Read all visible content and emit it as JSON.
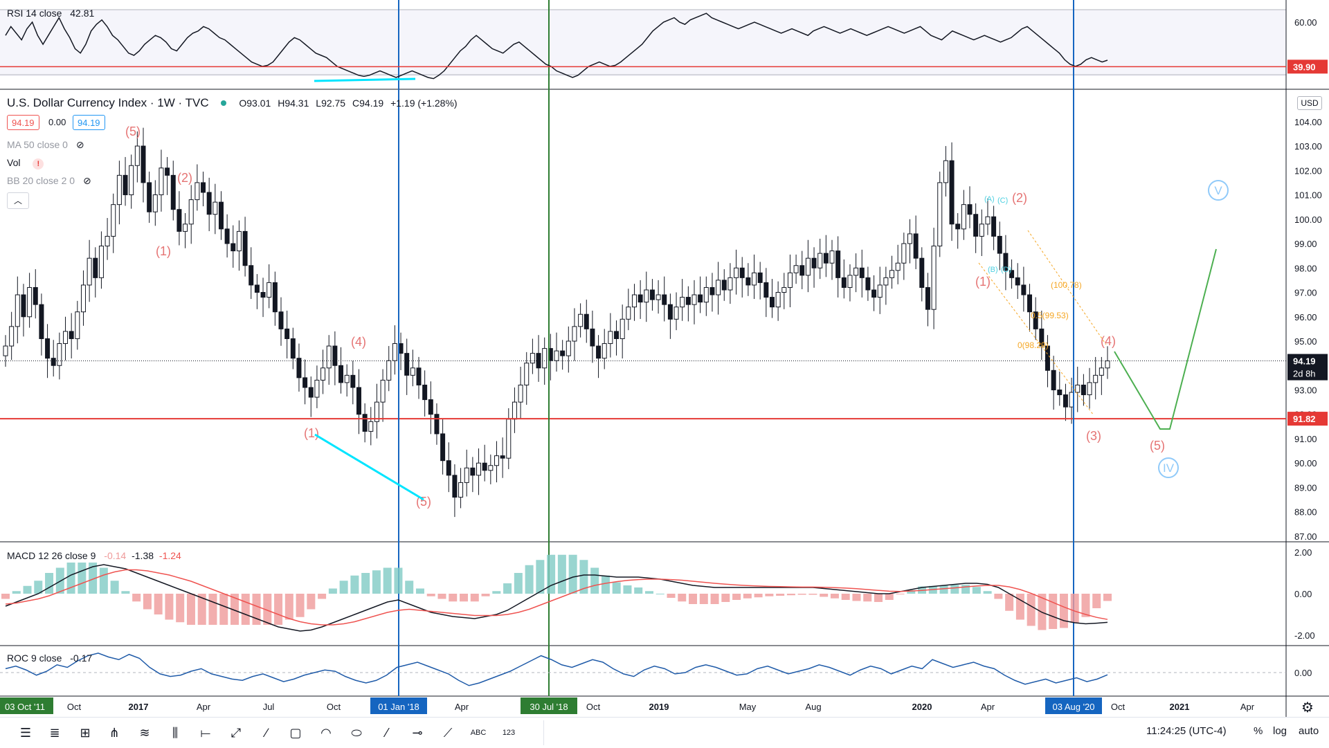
{
  "app": {
    "symbol_title": "U.S. Dollar Currency Index · 1W · TVC",
    "ohlc": {
      "open_label": "O",
      "open": "93.01",
      "high_label": "H",
      "high": "94.31",
      "low_label": "L",
      "low": "92.75",
      "close_label": "C",
      "close": "94.19",
      "change": "+1.19 (+1.28%)"
    },
    "bid": "94.19",
    "spread": "0.00",
    "ask": "94.19",
    "indicators": [
      {
        "label": "MA 50 close 0",
        "muted": true
      },
      {
        "label": "Vol",
        "muted": false
      },
      {
        "label": "BB 20 close 2 0",
        "muted": true
      }
    ],
    "currency": "USD",
    "time_display": "11:24:25 (UTC-4)",
    "scale_buttons": [
      "%",
      "log",
      "auto"
    ]
  },
  "chart_data": [
    {
      "type": "line",
      "title": "RSI 14 close",
      "last_value": "42.81",
      "y_ticks": [
        "60.00"
      ],
      "level_line": {
        "value": 39.9,
        "label": "39.90",
        "color": "#e53935"
      },
      "series": [
        {
          "name": "RSI 14 close",
          "color": "#131722",
          "values": [
            54,
            58,
            55,
            52,
            57,
            60,
            54,
            50,
            54,
            58,
            62,
            57,
            53,
            48,
            46,
            50,
            56,
            59,
            61,
            58,
            54,
            52,
            49,
            46,
            45,
            47,
            50,
            52,
            54,
            53,
            51,
            48,
            47,
            50,
            53,
            55,
            56,
            58,
            57,
            55,
            53,
            52,
            50,
            48,
            46,
            44,
            42,
            41,
            40,
            40.5,
            42,
            45,
            48,
            51,
            53,
            52,
            50,
            48,
            46,
            45,
            44,
            42,
            40,
            39,
            38,
            37,
            36,
            35.5,
            36,
            37,
            38,
            37,
            36,
            35,
            36,
            37,
            38,
            37,
            36,
            35,
            34.5,
            36,
            38,
            41,
            44,
            47,
            49,
            52,
            54,
            52,
            50,
            48,
            47,
            46,
            48,
            50,
            51,
            49,
            47,
            45,
            43,
            41,
            40,
            38,
            37,
            36,
            35,
            36,
            38,
            40,
            41,
            42,
            41,
            40,
            40.5,
            42,
            44,
            46,
            48,
            50,
            53,
            56,
            58,
            60,
            61,
            62,
            60,
            59,
            61,
            62,
            63,
            64,
            62,
            61,
            60,
            59,
            58,
            57,
            58,
            59,
            60,
            59,
            58,
            57,
            56,
            55,
            56,
            57,
            56,
            55,
            54,
            56,
            57,
            58,
            57,
            56,
            55,
            56,
            57,
            56,
            55,
            54,
            55,
            56,
            57,
            58,
            57,
            56,
            55,
            56,
            57,
            58,
            56,
            54,
            53,
            52,
            54,
            56,
            55,
            54,
            53,
            52,
            53,
            54,
            53,
            52,
            51,
            52,
            53,
            55,
            57,
            58,
            56,
            54,
            52,
            50,
            48,
            46,
            43,
            41,
            40,
            41,
            43,
            44,
            43,
            42,
            42.81
          ]
        }
      ]
    },
    {
      "type": "candlestick",
      "title": "U.S. Dollar Currency Index",
      "y_ticks": [
        "104.00",
        "103.00",
        "102.00",
        "101.00",
        "100.00",
        "99.00",
        "98.00",
        "97.00",
        "96.00",
        "95.00",
        "93.00",
        "92.00",
        "91.00",
        "90.00",
        "89.00",
        "88.00",
        "87.00"
      ],
      "y_range": [
        86.8,
        105.3
      ],
      "last_price": {
        "value": 94.19,
        "label": "94.19",
        "countdown": "2d 8h"
      },
      "support_line": {
        "value": 91.82,
        "label": "91.82",
        "color": "#e53935"
      },
      "close_series": [
        94.8,
        95.6,
        96.9,
        96.0,
        97.2,
        96.5,
        95.1,
        94.3,
        94.0,
        94.9,
        95.4,
        95.1,
        96.2,
        97.3,
        98.4,
        97.6,
        98.9,
        99.3,
        100.6,
        101.8,
        101.0,
        102.2,
        103.0,
        101.5,
        100.3,
        101.0,
        102.1,
        101.8,
        100.4,
        99.5,
        99.8,
        100.8,
        101.5,
        101.1,
        100.2,
        100.7,
        99.6,
        99.0,
        98.7,
        99.5,
        98.1,
        97.3,
        97.0,
        96.8,
        97.4,
        96.2,
        95.5,
        95.1,
        94.3,
        93.5,
        93.1,
        92.7,
        93.4,
        93.9,
        94.8,
        94.0,
        93.3,
        93.6,
        93.1,
        92.0,
        91.3,
        91.7,
        92.5,
        93.4,
        94.2,
        94.9,
        94.5,
        93.6,
        93.9,
        93.2,
        92.6,
        92.0,
        91.2,
        90.1,
        89.5,
        88.6,
        89.2,
        89.8,
        89.5,
        90.0,
        89.7,
        89.9,
        90.3,
        90.2,
        91.8,
        92.5,
        93.2,
        94.1,
        94.5,
        93.9,
        94.7,
        94.2,
        94.6,
        94.4,
        95.0,
        95.6,
        96.1,
        95.5,
        94.8,
        94.3,
        94.9,
        95.4,
        95.1,
        95.9,
        96.4,
        96.9,
        96.6,
        97.1,
        96.7,
        96.9,
        96.5,
        95.9,
        96.4,
        96.8,
        96.5,
        96.9,
        96.6,
        97.2,
        96.9,
        97.5,
        97.1,
        97.6,
        98.0,
        97.6,
        97.3,
        97.8,
        97.4,
        96.8,
        96.4,
        97.0,
        97.2,
        97.8,
        98.1,
        97.7,
        98.4,
        98.0,
        98.6,
        98.2,
        98.7,
        97.6,
        97.2,
        97.7,
        98.0,
        97.6,
        97.1,
        96.8,
        97.3,
        97.6,
        97.9,
        98.2,
        99.0,
        99.4,
        98.4,
        97.2,
        96.3,
        98.9,
        101.5,
        102.4,
        99.8,
        99.6,
        100.6,
        100.2,
        99.3,
        99.8,
        100.1,
        99.3,
        98.6,
        97.9,
        97.6,
        97.3,
        96.9,
        96.2,
        95.5,
        94.8,
        93.8,
        93.0,
        92.8,
        92.3,
        92.9,
        93.2,
        92.8,
        93.3,
        93.6,
        93.9,
        94.19
      ],
      "x_ticks": [
        "03 Oct '11",
        "Oct",
        "2017",
        "Apr",
        "Jul",
        "Oct",
        "01 Jan '18",
        "Apr",
        "30 Jul '18",
        "Oct",
        "2019",
        "May",
        "Aug",
        "2020",
        "Apr",
        "03 Aug '20",
        "Oct",
        "2021",
        "Apr"
      ],
      "x_ticks_highlighted": [
        "03 Oct '11",
        "01 Jan '18",
        "30 Jul '18",
        "03 Aug '20"
      ],
      "vertical_markers": [
        {
          "label": "01 Jan '18",
          "color": "#1565c0"
        },
        {
          "label": "30 Jul '18",
          "color": "#2e7d32"
        },
        {
          "label": "03 Aug '20",
          "color": "#1565c0"
        }
      ],
      "annotations": {
        "wave_labels": [
          "(5)",
          "(1)",
          "(2)",
          "(1)",
          "(4)",
          "(5)",
          "(1)",
          "(2)",
          "(3)",
          "(4)",
          "(5)"
        ],
        "roman_labels": [
          "V",
          "IV"
        ],
        "fib_levels": [
          "(100.78)",
          "0.5(99.53)",
          "0(98.29)"
        ],
        "sub_wave_labels": [
          "(A)",
          "(C)",
          "(B)",
          "(D)"
        ]
      }
    },
    {
      "type": "line",
      "title": "MACD 12 26 close 9",
      "values_text": [
        "-0.14",
        "-1.38",
        "-1.24"
      ],
      "y_ticks": [
        "2.00",
        "0.00",
        "-2.00"
      ],
      "series": [
        {
          "name": "MACD",
          "color": "#131722",
          "values": [
            -0.6,
            -0.4,
            -0.2,
            0,
            0.3,
            0.6,
            0.9,
            1.1,
            1.3,
            1.4,
            1.3,
            1.2,
            1.0,
            0.8,
            0.6,
            0.4,
            0.2,
            0,
            -0.2,
            -0.4,
            -0.6,
            -0.8,
            -1.0,
            -1.2,
            -1.4,
            -1.6,
            -1.7,
            -1.8,
            -1.75,
            -1.6,
            -1.4,
            -1.2,
            -1.0,
            -0.8,
            -0.6,
            -0.4,
            -0.3,
            -0.5,
            -0.7,
            -0.9,
            -1.0,
            -1.1,
            -1.15,
            -1.2,
            -1.1,
            -1.0,
            -0.8,
            -0.5,
            -0.2,
            0.1,
            0.4,
            0.6,
            0.8,
            0.9,
            0.9,
            0.85,
            0.8,
            0.8,
            0.8,
            0.75,
            0.7,
            0.6,
            0.5,
            0.4,
            0.35,
            0.3,
            0.3,
            0.3,
            0.3,
            0.3,
            0.3,
            0.3,
            0.3,
            0.3,
            0.3,
            0.25,
            0.2,
            0.15,
            0.1,
            0.05,
            0,
            0,
            0.1,
            0.2,
            0.3,
            0.35,
            0.4,
            0.45,
            0.5,
            0.5,
            0.45,
            0.3,
            0,
            -0.3,
            -0.6,
            -0.9,
            -1.1,
            -1.3,
            -1.4,
            -1.45,
            -1.42,
            -1.38
          ]
        },
        {
          "name": "Signal",
          "color": "#ef5350",
          "values": [
            -0.5,
            -0.45,
            -0.35,
            -0.25,
            -0.1,
            0.1,
            0.3,
            0.5,
            0.7,
            0.9,
            1.05,
            1.15,
            1.15,
            1.1,
            1.0,
            0.9,
            0.75,
            0.6,
            0.4,
            0.2,
            0,
            -0.2,
            -0.4,
            -0.6,
            -0.8,
            -1.0,
            -1.2,
            -1.35,
            -1.45,
            -1.5,
            -1.5,
            -1.45,
            -1.35,
            -1.2,
            -1.05,
            -0.9,
            -0.8,
            -0.75,
            -0.8,
            -0.85,
            -0.9,
            -0.95,
            -1.0,
            -1.05,
            -1.05,
            -1.05,
            -1.0,
            -0.9,
            -0.75,
            -0.55,
            -0.35,
            -0.15,
            0.05,
            0.25,
            0.4,
            0.5,
            0.58,
            0.64,
            0.68,
            0.7,
            0.7,
            0.68,
            0.65,
            0.6,
            0.55,
            0.5,
            0.46,
            0.42,
            0.39,
            0.37,
            0.35,
            0.34,
            0.33,
            0.32,
            0.32,
            0.31,
            0.29,
            0.27,
            0.24,
            0.2,
            0.16,
            0.12,
            0.11,
            0.13,
            0.16,
            0.2,
            0.24,
            0.28,
            0.33,
            0.37,
            0.4,
            0.4,
            0.33,
            0.2,
            0.02,
            -0.2,
            -0.42,
            -0.64,
            -0.84,
            -1.0,
            -1.14,
            -1.24
          ]
        }
      ]
    },
    {
      "type": "line",
      "title": "ROC 9 close",
      "last_value": "-0.17",
      "y_ticks": [
        "0.00"
      ],
      "series": [
        {
          "name": "ROC 9 close",
          "color": "#1e5aa8",
          "values": [
            0.3,
            0.5,
            0.2,
            -0.2,
            0.1,
            0.6,
            0.4,
            0.9,
            1.3,
            1.5,
            1.2,
            1.0,
            1.4,
            1.1,
            0.4,
            -0.1,
            -0.3,
            -0.2,
            0.1,
            0.3,
            -0.1,
            -0.3,
            -0.5,
            -0.6,
            -0.3,
            -0.1,
            -0.4,
            -0.7,
            -0.5,
            -0.2,
            0.0,
            0.2,
            0.1,
            -0.3,
            -0.6,
            -0.8,
            -0.6,
            -0.2,
            0.4,
            0.6,
            0.8,
            0.5,
            0.2,
            -0.1,
            -0.6,
            -1.0,
            -0.8,
            -0.5,
            -0.2,
            0.1,
            0.5,
            0.9,
            1.3,
            1.0,
            0.6,
            0.4,
            0.7,
            1.0,
            0.8,
            0.3,
            -0.1,
            -0.3,
            0.2,
            0.5,
            0.3,
            -0.1,
            0.0,
            0.4,
            0.6,
            0.4,
            0.1,
            -0.2,
            -0.1,
            0.3,
            0.5,
            0.2,
            -0.1,
            0.1,
            0.3,
            0.6,
            0.4,
            0.1,
            -0.2,
            0.2,
            0.5,
            0.3,
            -0.1,
            0.2,
            0.5,
            0.3,
            1.0,
            0.7,
            0.4,
            0.6,
            0.8,
            0.5,
            0.3,
            -0.2,
            -0.6,
            -0.9,
            -0.7,
            -0.5,
            -0.8,
            -0.6,
            -0.4,
            -0.7,
            -0.5,
            -0.17
          ]
        }
      ]
    }
  ]
}
